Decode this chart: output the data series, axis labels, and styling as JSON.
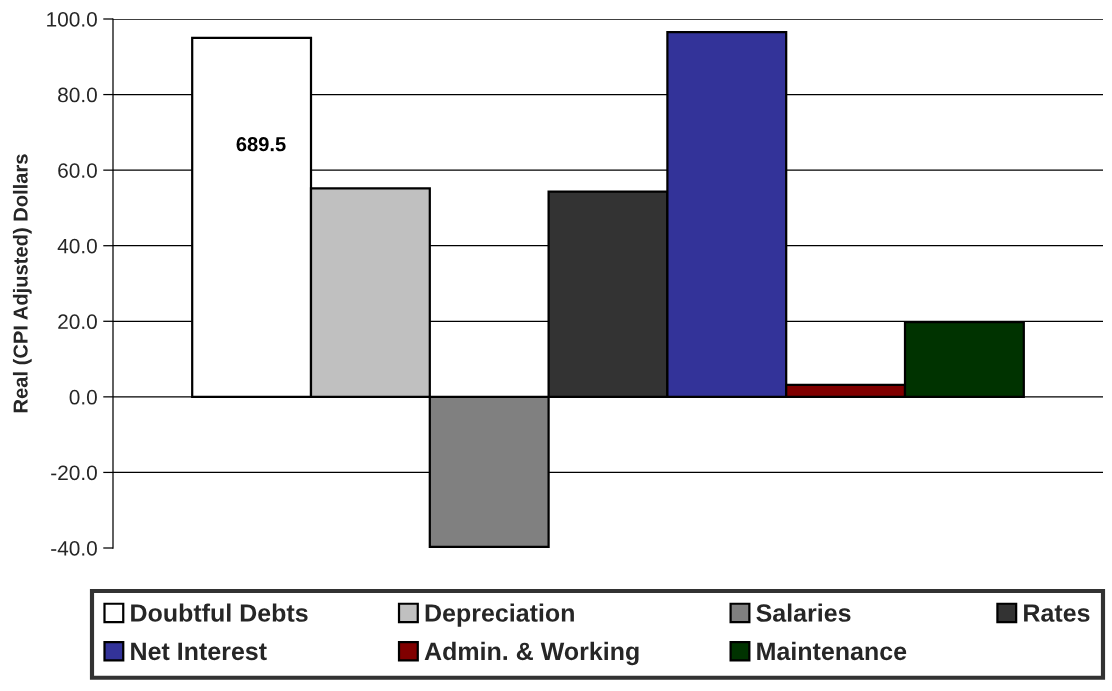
{
  "chart_data": {
    "type": "bar",
    "ylabel": "Real (CPI Adjusted) Dollars",
    "categories": [
      null
    ],
    "series": [
      {
        "name": "Doubtful Debts",
        "color": "#ffffff",
        "values": [
          95
        ]
      },
      {
        "name": "Depreciation",
        "color": "#c0c0c0",
        "values": [
          55.2
        ]
      },
      {
        "name": "Salaries",
        "color": "#808080",
        "values": [
          -39.7
        ]
      },
      {
        "name": "Rates",
        "color": "#333333",
        "values": [
          54.3
        ]
      },
      {
        "name": "Net Interest",
        "color": "#333399",
        "values": [
          96.5
        ]
      },
      {
        "name": "Admin. & Working",
        "color": "#800000",
        "values": [
          3.2
        ]
      },
      {
        "name": "Maintenance",
        "color": "#003300",
        "values": [
          19.8
        ]
      }
    ],
    "annotations": [
      "689.5"
    ],
    "ylim": [
      -40,
      100
    ],
    "yticks": [
      {
        "value": -40,
        "label": "-40.0"
      },
      {
        "value": -20,
        "label": "-20.0"
      },
      {
        "value": 0,
        "label": "0.0"
      },
      {
        "value": 20,
        "label": "20.0"
      },
      {
        "value": 40,
        "label": "40.0"
      },
      {
        "value": 60,
        "label": "60.0"
      },
      {
        "value": 80,
        "label": "80.0"
      },
      {
        "value": 100,
        "label": "100.0"
      }
    ],
    "grid": "y",
    "legend": "bottom",
    "tick_labels": "y"
  }
}
